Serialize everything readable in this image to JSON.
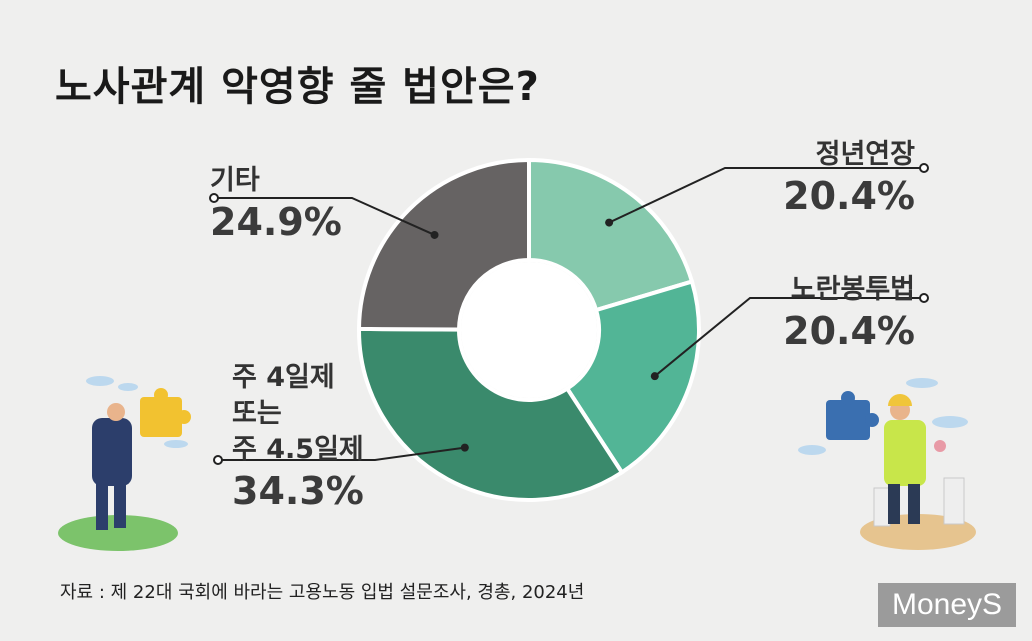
{
  "title": "노사관계 악영향 줄 법안은?",
  "source": "자료 : 제 22대 국회에 바라는 고용노동 입법 설문조사, 경총, 2024년",
  "logo": "MoneyS",
  "chart_data": {
    "type": "pie",
    "donut": true,
    "slices": [
      {
        "label": "정년연장",
        "label_lines": [
          "정년연장"
        ],
        "value": 20.4,
        "display": "20.4%",
        "color": "#86c9ad"
      },
      {
        "label": "노란봉투법",
        "label_lines": [
          "노란봉투법"
        ],
        "value": 20.4,
        "display": "20.4%",
        "color": "#52b596"
      },
      {
        "label": "주 4일제 또는 주 4.5일제",
        "label_lines": [
          "주 4일제",
          "또는",
          "주 4.5일제"
        ],
        "value": 34.3,
        "display": "34.3%",
        "color": "#3a8a6c"
      },
      {
        "label": "기타",
        "label_lines": [
          "기타"
        ],
        "value": 24.9,
        "display": "24.9%",
        "color": "#666363"
      }
    ]
  },
  "colors": {
    "background": "#efefee",
    "title": "#1a1a1a",
    "leader": "#222222"
  },
  "illustrations": [
    "businessman-puzzle-icon",
    "worker-puzzle-icon"
  ]
}
